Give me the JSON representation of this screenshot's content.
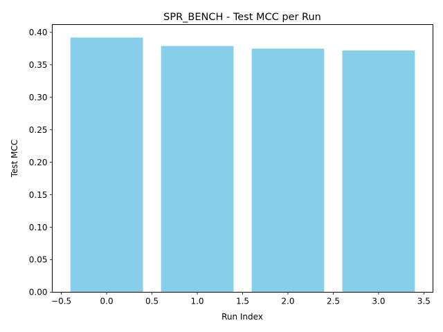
{
  "chart_data": {
    "type": "bar",
    "title": "SPR_BENCH - Test MCC per Run",
    "xlabel": "Run Index",
    "ylabel": "Test MCC",
    "x": [
      0,
      1,
      2,
      3
    ],
    "values": [
      0.392,
      0.379,
      0.375,
      0.372
    ],
    "bar_width": 0.8,
    "bar_color": "#87CEEB",
    "xlim": [
      -0.6,
      3.6
    ],
    "ylim": [
      0,
      0.412
    ],
    "xticks": [
      -0.5,
      0.0,
      0.5,
      1.0,
      1.5,
      2.0,
      2.5,
      3.0,
      3.5
    ],
    "xtick_labels": [
      "−0.5",
      "0.0",
      "0.5",
      "1.0",
      "1.5",
      "2.0",
      "2.5",
      "3.0",
      "3.5"
    ],
    "yticks": [
      0.0,
      0.05,
      0.1,
      0.15,
      0.2,
      0.25,
      0.3,
      0.35,
      0.4
    ],
    "ytick_labels": [
      "0.00",
      "0.05",
      "0.10",
      "0.15",
      "0.20",
      "0.25",
      "0.30",
      "0.35",
      "0.40"
    ],
    "grid": false,
    "legend": false
  }
}
